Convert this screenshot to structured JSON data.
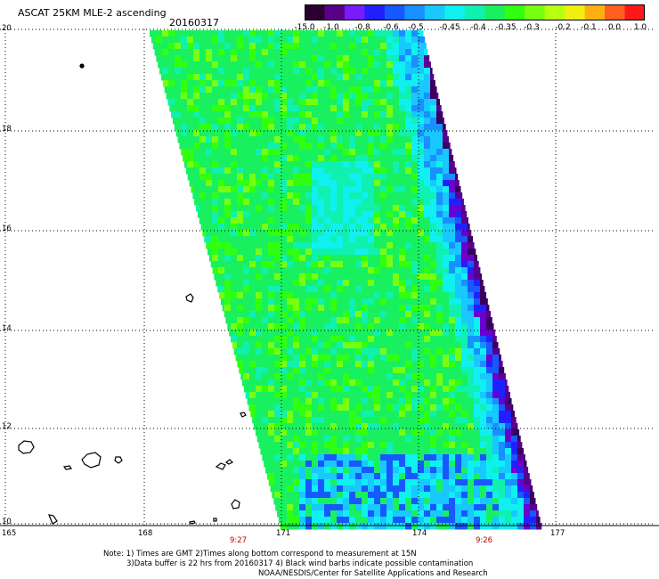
{
  "header": {
    "title": "ASCAT 25KM MLE-2 ascending",
    "date": "20160317"
  },
  "colorbar": {
    "colors": [
      "#2a0030",
      "#5a0088",
      "#7a1aff",
      "#2020ff",
      "#1858ff",
      "#1890ff",
      "#18c8ff",
      "#10f0f0",
      "#10f0b0",
      "#18f060",
      "#30ff10",
      "#78ff10",
      "#b8ff10",
      "#f0f010",
      "#ffb010",
      "#ff6020",
      "#ff1818"
    ],
    "labels": [
      "-15.0",
      "-1.0",
      "-0.8",
      "-0.6",
      "-0.5",
      "-0.45",
      "-0.4",
      "-0.35",
      "-0.3",
      "-0.2",
      "-0.1",
      "0.0",
      "1.0"
    ]
  },
  "map": {
    "lat_labels": [
      "20",
      "18",
      "16",
      "14",
      "12",
      "10"
    ],
    "lon_labels": [
      "165",
      "168",
      "171",
      "174",
      "177"
    ],
    "time_labels": [
      "9:27",
      "9:26"
    ],
    "time_color": "#c00000",
    "land_color": "#000000"
  },
  "footer": {
    "line1": "Note: 1) Times are GMT 2)Times along bottom correspond to measurement at 15N",
    "line2": "3)Data buffer is 22 hrs from 20160317 4) Black wind barbs indicate possible contamination",
    "line3": "NOAA/NESDIS/Center for Satellite Applications and Research"
  }
}
